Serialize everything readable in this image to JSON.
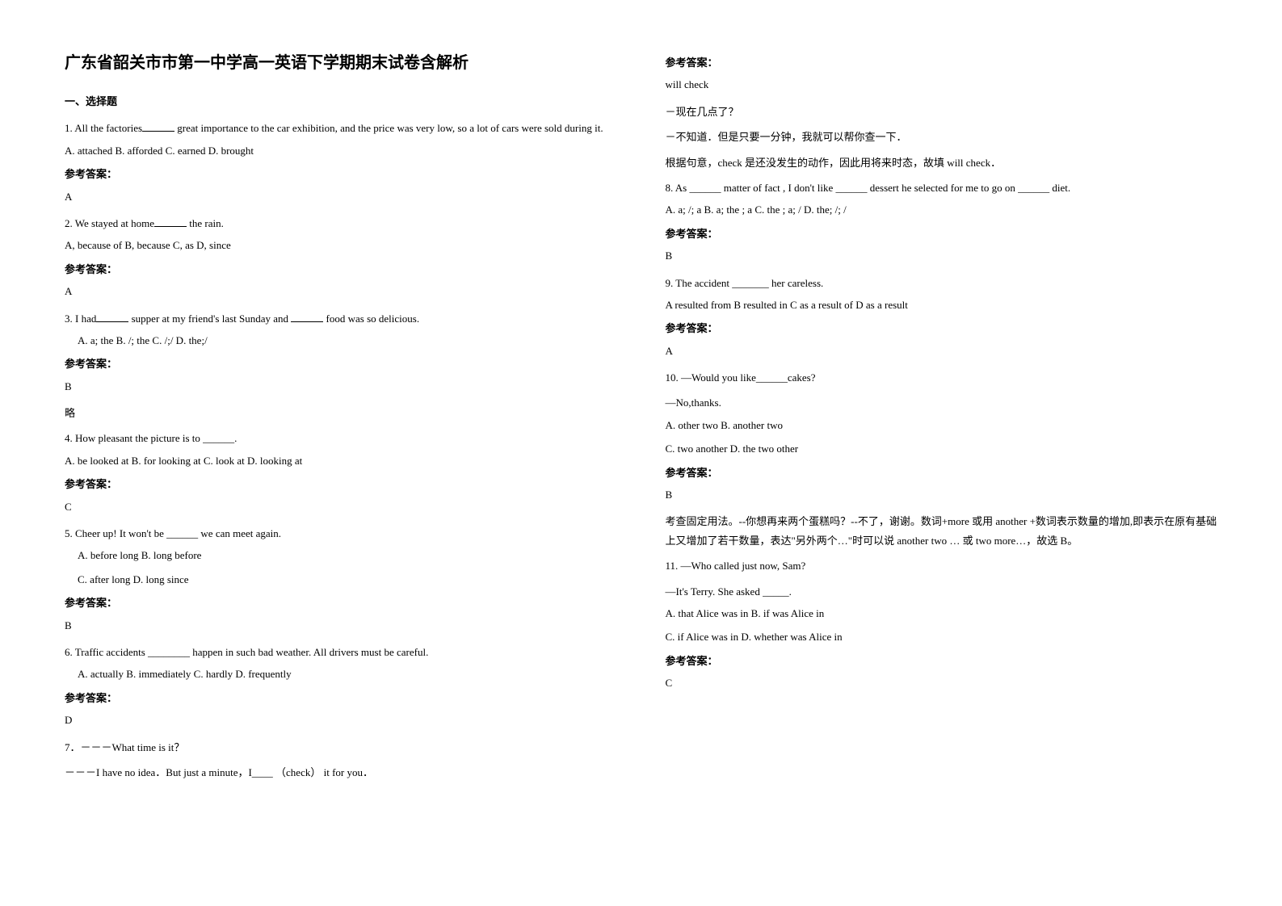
{
  "title": "广东省韶关市市第一中学高一英语下学期期末试卷含解析",
  "section1_header": "一、选择题",
  "answer_label": "参考答案：",
  "q1": {
    "stem_a": "1. All the factories",
    "stem_b": "great importance to the car exhibition, and the price was very low, so a lot of cars were sold during it.",
    "opts": "A. attached    B. afforded    C. earned   D. brought",
    "ans": "A"
  },
  "q2": {
    "stem_a": "2. We stayed at home",
    "stem_b": "the rain.",
    "opts": "A, because of    B, because     C, as           D, since",
    "ans": "A"
  },
  "q3": {
    "stem_a": "3. I had",
    "stem_b": "supper at my friend's last Sunday and",
    "stem_c": "food was so delicious.",
    "opts": "A. a; the     B. /; the     C. /;/        D. the;/",
    "ans": "B",
    "lue": "略"
  },
  "q4": {
    "stem": "4. How pleasant the picture is to ______.",
    "opts": "A. be looked at    B. for looking at      C. look at    D. looking at",
    "ans": "C"
  },
  "q5": {
    "stem": "5. Cheer up! It won't be ______ we can meet again.",
    "opts1": "A. before long                        B. long before",
    "opts2": "C. after long                           D. long since",
    "ans": "B"
  },
  "q6": {
    "stem": "6. Traffic accidents ________ happen in such bad weather. All drivers must be careful.",
    "opts": "A. actually      B. immediately   C. hardly   D. frequently",
    "ans": "D"
  },
  "q7": {
    "stem1": "7．－－－What time is it？",
    "stem2": "－－－I have no idea．But just a minute，I____ （check）  it for you．",
    "ans": "will check",
    "exp1": "－现在几点了？",
    "exp2": "－不知道．但是只要一分钟，我就可以帮你查一下．",
    "exp3": "根据句意，check 是还没发生的动作，因此用将来时态，故填 will check．"
  },
  "q8": {
    "stem": "8. As ______ matter of fact , I don't like ______ dessert he selected for me to go on ______ diet.",
    "opts": "A. a; /; a       B. a; the ; a       C. the ; a; /     D. the; /; /",
    "ans": "B"
  },
  "q9": {
    "stem": "9. The accident _______ her careless.",
    "opts": "A resulted from   B resulted in   C as a result of    D as a result",
    "ans": "A"
  },
  "q10": {
    "stem1": "10. —Would you like______cakes?",
    "stem2": "—No,thanks.",
    "opts1": "A. other two   B. another two",
    "opts2": "C. two another   D. the two other",
    "ans": "B",
    "exp": "考查固定用法。--你想再来两个蛋糕吗？--不了，谢谢。数词+more 或用 another +数词表示数量的增加,即表示在原有基础上又增加了若干数量，表达\"另外两个…\"时可以说 another two … 或 two more…，故选 B。"
  },
  "q11": {
    "stem1": "11. —Who called just now, Sam?",
    "stem2": "—It's Terry. She asked _____.",
    "opts1": "A. that Alice was in          B. if was Alice in",
    "opts2": "C. if Alice was in                       D. whether was Alice in",
    "ans": "C"
  }
}
